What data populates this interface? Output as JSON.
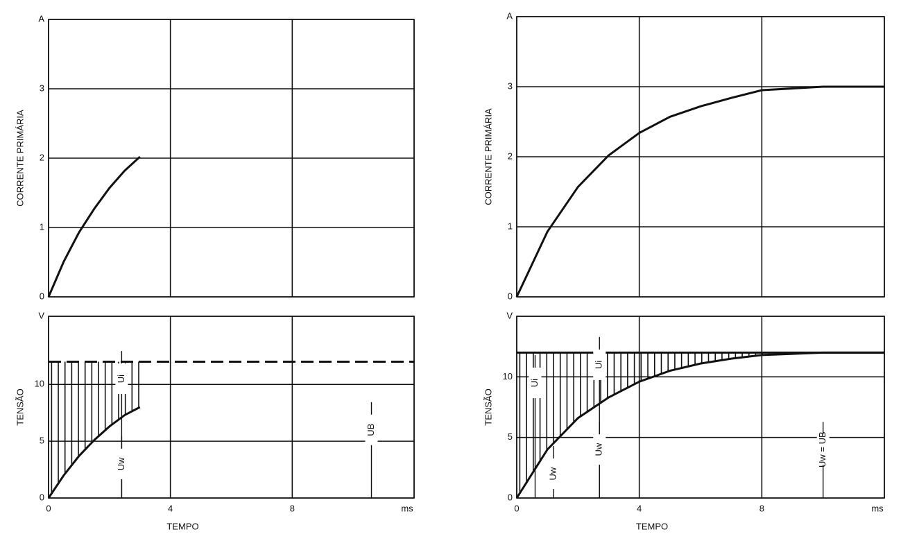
{
  "chart_data": [
    {
      "type": "line",
      "y_label": "CORRENTE PRIMÁRIA",
      "ylim": [
        0,
        4
      ],
      "yticks": [
        0,
        1,
        2,
        3,
        {
          "value": 4,
          "label": "A"
        }
      ],
      "series": [
        {
          "color": "#111",
          "x": [
            0,
            0.5,
            1,
            1.5,
            2,
            2.5,
            3
          ],
          "values": [
            0,
            0.51,
            0.93,
            1.27,
            1.57,
            1.82,
            2.02
          ]
        }
      ]
    },
    {
      "type": "line",
      "y_label": "TENSÃO",
      "x_label": "TEMPO",
      "xlim": [
        0,
        12
      ],
      "xticks": [
        0,
        4,
        8,
        {
          "value": 12,
          "label": "ms"
        }
      ],
      "ylim": [
        0,
        16
      ],
      "yticks": [
        0,
        5,
        10,
        {
          "value": 16,
          "label": "V"
        }
      ],
      "hatch": true,
      "series": [
        {
          "color": "#111",
          "x": [
            0,
            0.5,
            1,
            1.5,
            2,
            2.5,
            3
          ],
          "values": [
            0,
            2.0,
            3.7,
            5.1,
            6.3,
            7.3,
            8.0
          ]
        },
        {
          "color": "#111",
          "dashed": true,
          "x": [
            0,
            12
          ],
          "values": [
            12,
            12
          ]
        }
      ],
      "annotations": [
        "Ui",
        "Uw",
        "UB"
      ]
    },
    {
      "type": "line",
      "y_label": "CORRENTE PRIMÁRIA",
      "ylim": [
        0,
        4
      ],
      "yticks": [
        0,
        1,
        2,
        3,
        {
          "value": 4,
          "label": "A"
        }
      ],
      "series": [
        {
          "color": "#111",
          "x": [
            0,
            1,
            2,
            3,
            4,
            5,
            6,
            7,
            8,
            10,
            12
          ],
          "values": [
            0,
            0.93,
            1.57,
            2.02,
            2.34,
            2.57,
            2.72,
            2.84,
            2.95,
            3,
            3
          ]
        }
      ]
    },
    {
      "type": "line",
      "y_label": "TENSÃO",
      "x_label": "TEMPO",
      "xlim": [
        0,
        12
      ],
      "xticks": [
        0,
        4,
        8,
        {
          "value": 12,
          "label": "ms"
        }
      ],
      "ylim": [
        0,
        15
      ],
      "yticks": [
        0,
        5,
        10,
        {
          "value": 15,
          "label": "V"
        }
      ],
      "hatch": true,
      "series": [
        {
          "color": "#111",
          "x": [
            0,
            1,
            2,
            3,
            4,
            5,
            6,
            7,
            8,
            10,
            12
          ],
          "values": [
            0,
            4.0,
            6.6,
            8.3,
            9.6,
            10.5,
            11.1,
            11.5,
            11.8,
            12,
            12
          ]
        },
        {
          "color": "#111",
          "x": [
            0,
            12
          ],
          "values": [
            12,
            12
          ]
        }
      ],
      "annotations": [
        "Ui",
        "Ui",
        "Uw",
        "Uw",
        "Uw = UB"
      ]
    }
  ]
}
